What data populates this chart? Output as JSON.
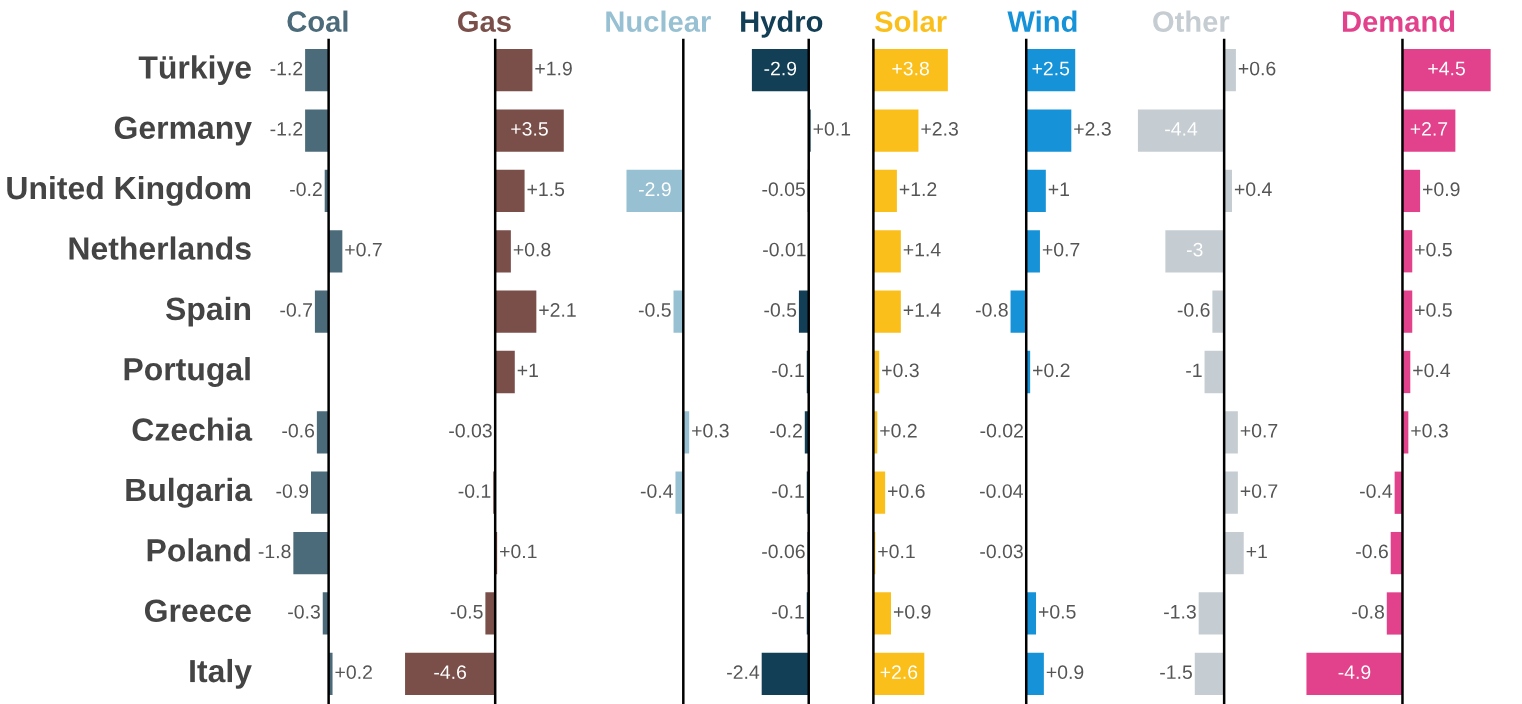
{
  "chart_data": [
    {
      "type": "bar",
      "orientation": "horizontal",
      "title": "Coal",
      "tick_labels": "y",
      "color": "#4b6b7a",
      "categories": [
        "Türkiye",
        "Germany",
        "United Kingdom",
        "Netherlands",
        "Spain",
        "Portugal",
        "Czechia",
        "Bulgaria",
        "Poland",
        "Greece",
        "Italy"
      ],
      "values": [
        -1.2,
        -1.2,
        -0.2,
        0.7,
        -0.7,
        null,
        -0.6,
        -0.9,
        -1.8,
        -0.3,
        0.2
      ],
      "value_labels": [
        "-1.2",
        "-1.2",
        "-0.2",
        "+0.7",
        "-0.7",
        null,
        "-0.6",
        "-0.9",
        "-1.8",
        "-0.3",
        "+0.2"
      ]
    },
    {
      "type": "bar",
      "orientation": "horizontal",
      "title": "Gas",
      "tick_labels": false,
      "color": "#7a4f4a",
      "values": [
        1.9,
        3.5,
        1.5,
        0.8,
        2.1,
        1,
        -0.03,
        -0.1,
        0.1,
        -0.5,
        -4.6
      ],
      "value_labels": [
        "+1.9",
        "+3.5",
        "+1.5",
        "+0.8",
        "+2.1",
        "+1",
        "-0.03",
        "-0.1",
        "+0.1",
        "-0.5",
        "-4.6"
      ]
    },
    {
      "type": "bar",
      "orientation": "horizontal",
      "title": "Nuclear",
      "tick_labels": false,
      "color": "#97c1d3",
      "values": [
        null,
        null,
        -2.9,
        null,
        -0.5,
        null,
        0.3,
        -0.4,
        null,
        null,
        null
      ],
      "value_labels": [
        null,
        null,
        "-2.9",
        null,
        "-0.5",
        null,
        "+0.3",
        "-0.4",
        null,
        null,
        null
      ]
    },
    {
      "type": "bar",
      "orientation": "horizontal",
      "title": "Hydro",
      "tick_labels": false,
      "color": "#123f55",
      "values": [
        -2.9,
        0.1,
        -0.05,
        -0.01,
        -0.5,
        -0.1,
        -0.2,
        -0.1,
        -0.06,
        -0.1,
        -2.4
      ],
      "value_labels": [
        "-2.9",
        "+0.1",
        "-0.05",
        "-0.01",
        "-0.5",
        "-0.1",
        "-0.2",
        "-0.1",
        "-0.06",
        "-0.1",
        "-2.4"
      ]
    },
    {
      "type": "bar",
      "orientation": "horizontal",
      "title": "Solar",
      "tick_labels": false,
      "color": "#fbbf1b",
      "values": [
        3.8,
        2.3,
        1.2,
        1.4,
        1.4,
        0.3,
        0.2,
        0.6,
        0.1,
        0.9,
        2.6
      ],
      "value_labels": [
        "+3.8",
        "+2.3",
        "+1.2",
        "+1.4",
        "+1.4",
        "+0.3",
        "+0.2",
        "+0.6",
        "+0.1",
        "+0.9",
        "+2.6"
      ]
    },
    {
      "type": "bar",
      "orientation": "horizontal",
      "title": "Wind",
      "tick_labels": false,
      "color": "#1592d8",
      "values": [
        2.5,
        2.3,
        1,
        0.7,
        -0.8,
        0.2,
        -0.02,
        -0.04,
        -0.03,
        0.5,
        0.9
      ],
      "value_labels": [
        "+2.5",
        "+2.3",
        "+1",
        "+0.7",
        "-0.8",
        "+0.2",
        "-0.02",
        "-0.04",
        "-0.03",
        "+0.5",
        "+0.9"
      ]
    },
    {
      "type": "bar",
      "orientation": "horizontal",
      "title": "Other",
      "tick_labels": false,
      "color": "#c5cdd2",
      "values": [
        0.6,
        -4.4,
        0.4,
        -3,
        -0.6,
        -1,
        0.7,
        0.7,
        1,
        -1.3,
        -1.5
      ],
      "value_labels": [
        "+0.6",
        "-4.4",
        "+0.4",
        "-3",
        "-0.6",
        "-1",
        "+0.7",
        "+0.7",
        "+1",
        "-1.3",
        "-1.5"
      ]
    },
    {
      "type": "bar",
      "orientation": "horizontal",
      "title": "Demand",
      "tick_labels": false,
      "color": "#e2418b",
      "values": [
        4.5,
        2.7,
        0.9,
        0.5,
        0.5,
        0.4,
        0.3,
        -0.4,
        -0.6,
        -0.8,
        -4.9
      ],
      "value_labels": [
        "+4.5",
        "+2.7",
        "+0.9",
        "+0.5",
        "+0.5",
        "+0.4",
        "+0.3",
        "-0.4",
        "-0.6",
        "-0.8",
        "-4.9"
      ]
    }
  ]
}
